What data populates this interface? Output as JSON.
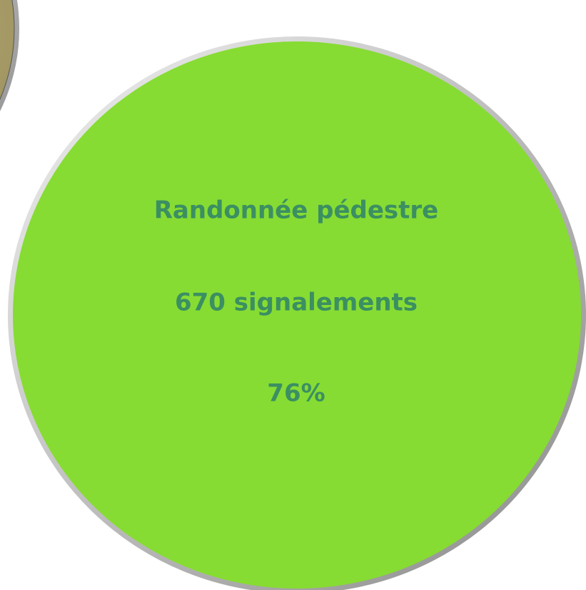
{
  "bubbles": [
    {
      "label": "Randonnée pédestre",
      "count": "670 signalements",
      "share": "76%"
    }
  ]
}
